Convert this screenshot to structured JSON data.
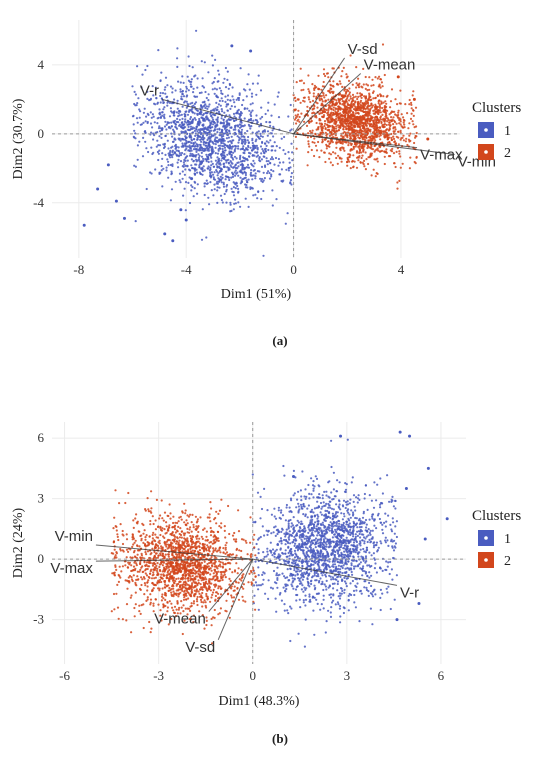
{
  "colors": {
    "cluster1": "#4a5cc0",
    "cluster2": "#d2461c",
    "grid": "#ebebeb",
    "axis": "#9a9a9a",
    "arrow": "#333333"
  },
  "chart_data": [
    {
      "panel_label": "(a)",
      "type": "scatter",
      "xlabel": "Dim1 (51%)",
      "ylabel": "Dim2 (30.7%)",
      "xlim": [
        -9,
        6.2
      ],
      "ylim": [
        -7.2,
        6.6
      ],
      "xticks": [
        -8,
        -4,
        0,
        4
      ],
      "yticks": [
        -4,
        0,
        4
      ],
      "grid": true,
      "legend": {
        "title": "Clusters",
        "position": "right",
        "entries": [
          "1",
          "2"
        ]
      },
      "series": [
        {
          "name": "1",
          "color_key": "cluster1",
          "x_range": [
            -6,
            0
          ],
          "y_range": [
            -4.5,
            4
          ]
        },
        {
          "name": "2",
          "color_key": "cluster2",
          "x_range": [
            0,
            4.6
          ],
          "y_range": [
            -2.2,
            3.6
          ]
        }
      ],
      "outliers": [
        [
          -7.8,
          -5.3
        ],
        [
          -7.3,
          -3.2
        ],
        [
          -6.3,
          -4.9
        ],
        [
          -6.6,
          -3.9
        ],
        [
          -6.9,
          -1.8
        ],
        [
          -4.5,
          -6.2
        ],
        [
          -4.8,
          -5.8
        ],
        [
          -4.2,
          -4.4
        ],
        [
          -4.0,
          -5.0
        ],
        [
          -3.8,
          -2.6
        ],
        [
          -1.6,
          4.8
        ],
        [
          -2.3,
          5.1
        ],
        [
          3.9,
          3.3
        ],
        [
          4.5,
          2.0
        ],
        [
          5.0,
          -0.3
        ]
      ],
      "variables": [
        {
          "label": "V-sd",
          "x": 1.9,
          "y": 4.4
        },
        {
          "label": "V-mean",
          "x": 2.5,
          "y": 3.5
        },
        {
          "label": "V-max",
          "x": 4.6,
          "y": -0.8
        },
        {
          "label": "V-min",
          "x": 6.0,
          "y": -1.2
        },
        {
          "label": "V-r",
          "x": -4.9,
          "y": 2.0
        }
      ]
    },
    {
      "panel_label": "(b)",
      "type": "scatter",
      "xlabel": "Dim1 (48.3%)",
      "ylabel": "Dim2 (24%)",
      "xlim": [
        -6.4,
        6.8
      ],
      "ylim": [
        -5.2,
        6.8
      ],
      "xticks": [
        -6,
        -3,
        0,
        3,
        6
      ],
      "yticks": [
        -3,
        0,
        3,
        6
      ],
      "grid": true,
      "legend": {
        "title": "Clusters",
        "position": "right",
        "entries": [
          "1",
          "2"
        ]
      },
      "series": [
        {
          "name": "1",
          "color_key": "cluster1",
          "x_range": [
            0,
            4.6
          ],
          "y_range": [
            -3.2,
            4.3
          ]
        },
        {
          "name": "2",
          "color_key": "cluster2",
          "x_range": [
            -4.5,
            0.1
          ],
          "y_range": [
            -3.2,
            2.7
          ]
        }
      ],
      "outliers": [
        [
          2.8,
          6.1
        ],
        [
          4.7,
          6.3
        ],
        [
          5.0,
          6.1
        ],
        [
          5.6,
          4.5
        ],
        [
          4.9,
          3.5
        ],
        [
          6.2,
          2.0
        ],
        [
          5.5,
          1.0
        ],
        [
          5.3,
          -2.2
        ],
        [
          4.6,
          -3.0
        ],
        [
          1.3,
          4.1
        ]
      ],
      "variables": [
        {
          "label": "V-min",
          "x": -5.0,
          "y": 0.7
        },
        {
          "label": "V-max",
          "x": -5.0,
          "y": -0.1
        },
        {
          "label": "V-mean",
          "x": -1.4,
          "y": -2.6
        },
        {
          "label": "V-sd",
          "x": -1.1,
          "y": -4.0
        },
        {
          "label": "V-r",
          "x": 4.6,
          "y": -1.3
        }
      ]
    }
  ]
}
